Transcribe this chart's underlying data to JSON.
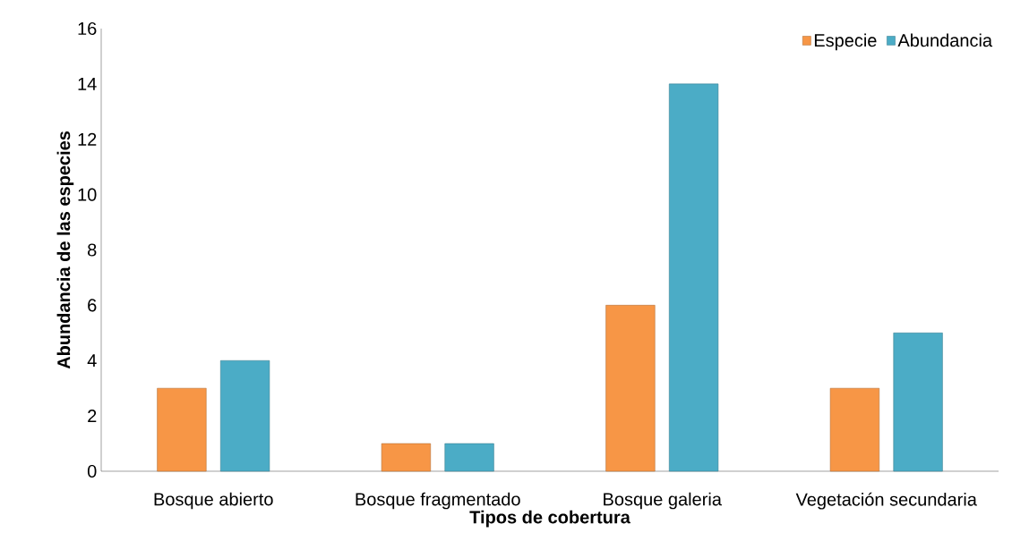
{
  "chart_data": {
    "type": "bar",
    "xlabel": "Tipos de cobertura",
    "ylabel": "Abundancia de las especies",
    "categories": [
      "Bosque abierto",
      "Bosque fragmentado",
      "Bosque galeria",
      "Vegetación secundaria"
    ],
    "series": [
      {
        "name": "Especie",
        "color": "#f79646",
        "values": [
          3,
          1,
          6,
          3
        ]
      },
      {
        "name": "Abundancia",
        "color": "#4bacc6",
        "values": [
          4,
          1,
          14,
          5
        ]
      }
    ],
    "ylim": [
      0,
      16
    ],
    "yticks": [
      0,
      2,
      4,
      6,
      8,
      10,
      12,
      14,
      16
    ],
    "legend": "top right"
  }
}
